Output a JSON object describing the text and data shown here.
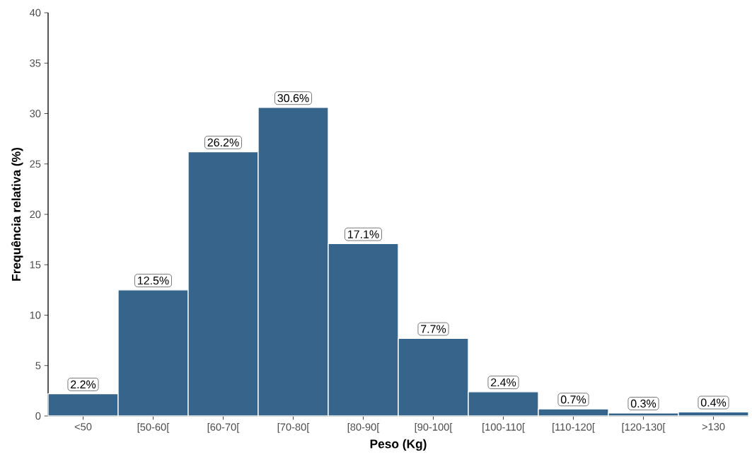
{
  "chart_data": {
    "type": "bar",
    "xlabel": "Peso (Kg)",
    "ylabel": "Frequência relativa (%)",
    "categories": [
      "<50",
      "[50-60[",
      "[60-70[",
      "[70-80[",
      "[80-90[",
      "[90-100[",
      "[100-110[",
      "[110-120[",
      "[120-130[",
      ">130"
    ],
    "values": [
      2.2,
      12.5,
      26.2,
      30.6,
      17.1,
      7.7,
      2.4,
      0.7,
      0.3,
      0.4
    ],
    "value_labels": [
      "2.2%",
      "12.5%",
      "26.2%",
      "30.6%",
      "17.1%",
      "7.7%",
      "2.4%",
      "0.7%",
      "0.3%",
      "0.4%"
    ],
    "color": "#36648b",
    "ylim": [
      0,
      40
    ],
    "yticks": [
      0,
      5,
      10,
      15,
      20,
      25,
      30,
      35,
      40
    ]
  }
}
